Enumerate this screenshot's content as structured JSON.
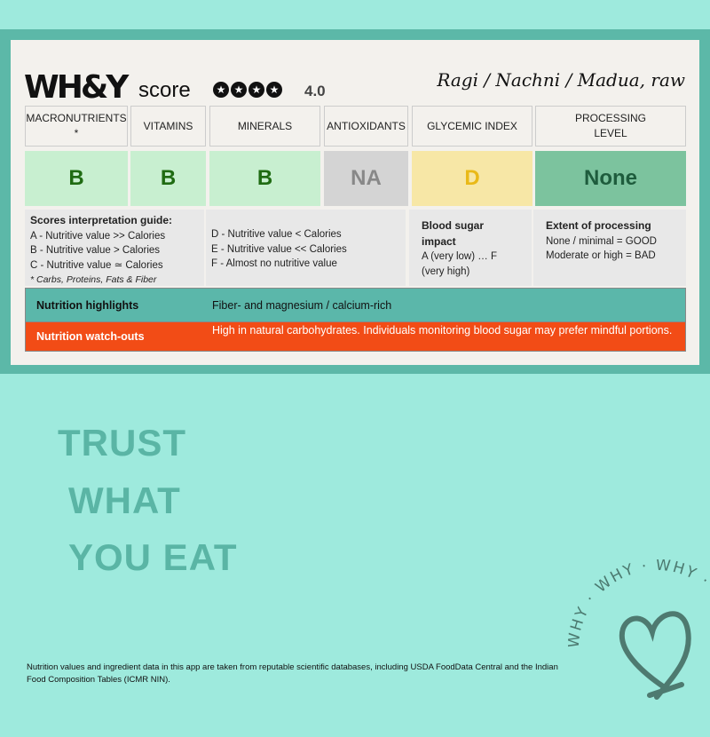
{
  "brand": {
    "logo": "WH&Y",
    "score_label": "score",
    "rating": 4.0,
    "rating_text": "4.0",
    "stars": "★",
    "food": "Ragi / Nachni / Madua, raw"
  },
  "columns": [
    {
      "label": "MACRONUTRIENTS *",
      "grade": "B",
      "bg": "#c8efd0",
      "color": "#1f6b12"
    },
    {
      "label": "VITAMINS",
      "grade": "B",
      "bg": "#c8efd0",
      "color": "#1f6b12"
    },
    {
      "label": "MINERALS",
      "grade": "B",
      "bg": "#c8efd0",
      "color": "#1f6b12"
    },
    {
      "label": "ANTIOXIDANTS",
      "grade": "NA",
      "bg": "#d4d4d4",
      "color": "#888888"
    },
    {
      "label": "GLYCEMIC INDEX",
      "grade": "D",
      "bg": "#f7e7a6",
      "color": "#e9b918"
    },
    {
      "label": "PROCESSING LEVEL",
      "grade": "None",
      "bg": "#7cc39e",
      "color": "#1e5c3d"
    }
  ],
  "guide": {
    "title": "Scores interpretation guide:",
    "a": "A - Nutritive value >> Calories",
    "b": "B - Nutritive value > Calories",
    "c": "C - Nutritive value ≃ Calories",
    "note": "* Carbs, Proteins, Fats & Fiber",
    "d": "D - Nutritive value < Calories",
    "e": "E - Nutritive value << Calories",
    "f": "F - Almost no nutritive value",
    "gi_title": "Blood sugar impact",
    "gi_text": "A (very low) … F (very high)",
    "proc_title": "Extent of processing",
    "proc_good": "None / minimal = GOOD",
    "proc_bad": "Moderate or high = BAD"
  },
  "highlights": {
    "label": "Nutrition highlights",
    "value": "Fiber- and magnesium / calcium-rich"
  },
  "watchouts": {
    "label": "Nutrition watch-outs",
    "value": "High in natural carbohydrates. Individuals monitoring blood sugar may prefer mindful portions."
  },
  "tagline": [
    "TRUST",
    "WHAT",
    "YOU EAT"
  ],
  "badge": {
    "text": "WHY · WHY · WHY · WHY · "
  },
  "footer": "Nutrition values and ingredient data in this app are taken from reputable scientific databases, including USDA FoodData Central and the Indian Food Composition Tables (ICMR NIN)."
}
